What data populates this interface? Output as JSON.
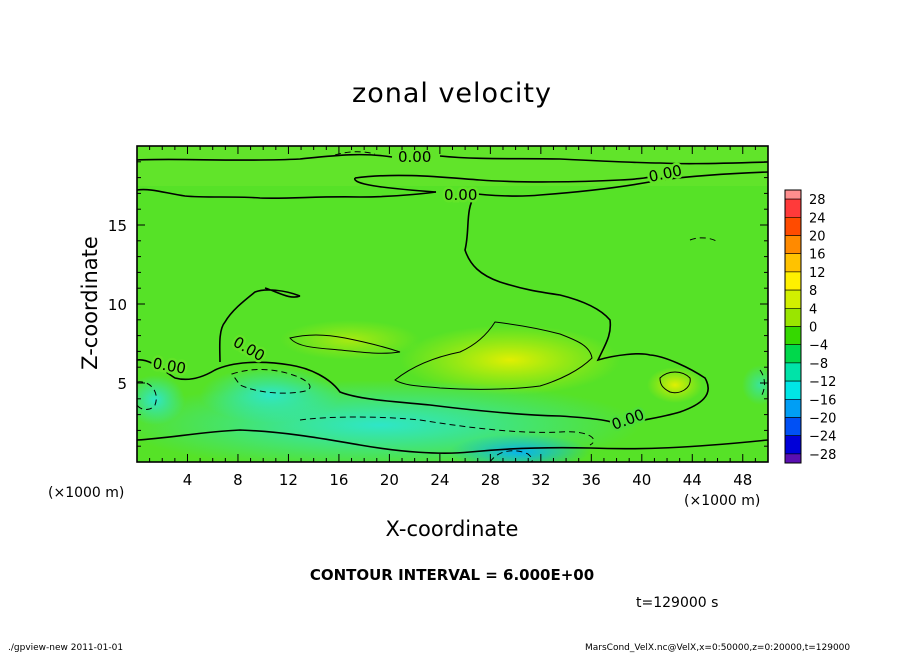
{
  "chart_data": {
    "type": "heatmap",
    "title": "zonal velocity",
    "xlabel": "X-coordinate",
    "ylabel": "Z-coordinate",
    "x_unit_label": "(×1000 m)",
    "y_unit_label": "(×1000 m)",
    "x_ticks": [
      4,
      8,
      12,
      16,
      20,
      24,
      28,
      32,
      36,
      40,
      44,
      48
    ],
    "y_ticks": [
      5,
      10,
      15
    ],
    "xlim": [
      0,
      50
    ],
    "ylim": [
      0,
      20
    ],
    "colorbar": {
      "labels": [
        "28",
        "24",
        "20",
        "16",
        "12",
        "8",
        "4",
        "0",
        "−4",
        "−8",
        "−12",
        "−16",
        "−20",
        "−24",
        "−28"
      ],
      "levels": [
        30,
        28,
        24,
        20,
        16,
        12,
        8,
        4,
        0,
        -4,
        -8,
        -12,
        -16,
        -20,
        -24,
        -28,
        -30
      ],
      "colors": [
        "#ff8e8e",
        "#ff3a3a",
        "#ff4b00",
        "#ff8a00",
        "#ffc200",
        "#fff000",
        "#d2ef00",
        "#9ae500",
        "#35d800",
        "#00d84b",
        "#00e3a8",
        "#00e6e6",
        "#009ef5",
        "#0050f5",
        "#0000d8",
        "#5a0fb2"
      ]
    },
    "contour_labels": [
      "0.00",
      "0.00",
      "0.00",
      "0.00",
      "0.00"
    ],
    "contour_interval": "CONTOUR INTERVAL = 6.000E+00"
  },
  "page": {
    "time_label": "t=129000 s",
    "footer_left": "./gpview-new   2011-01-01",
    "footer_right": "MarsCond_VelX.nc@VelX,x=0:50000,z=0:20000,t=129000"
  }
}
